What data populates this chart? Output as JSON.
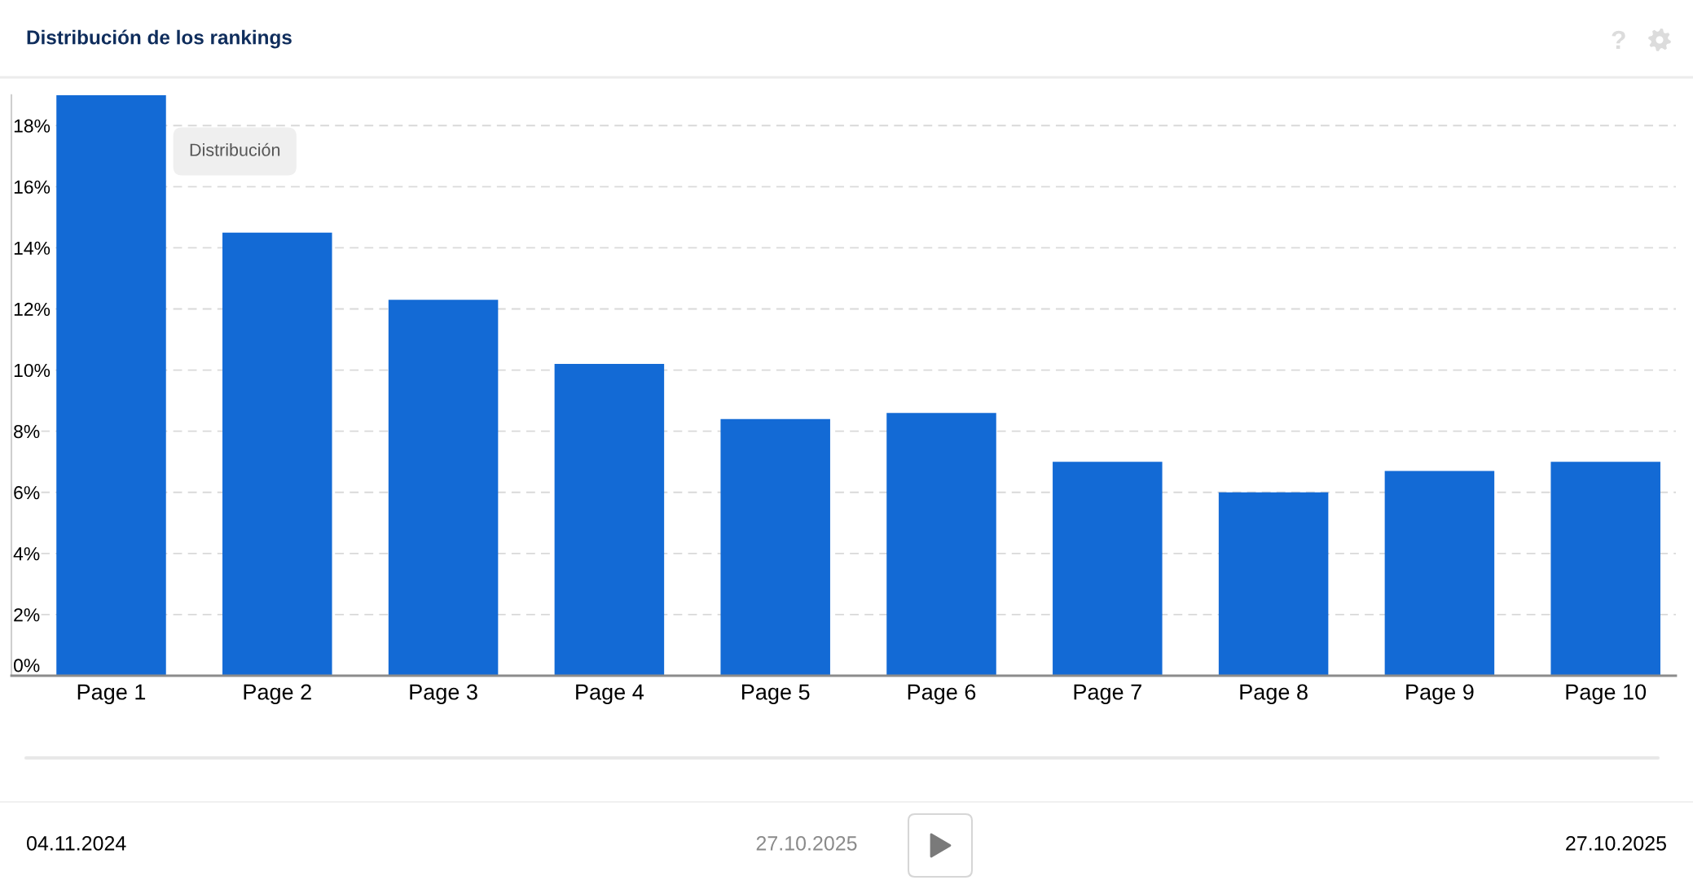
{
  "chart_data": {
    "type": "bar",
    "title": "Distribución de los rankings",
    "categories": [
      "Page 1",
      "Page 2",
      "Page 3",
      "Page 4",
      "Page 5",
      "Page 6",
      "Page 7",
      "Page 8",
      "Page 9",
      "Page 10"
    ],
    "values": [
      19.0,
      14.5,
      12.3,
      10.2,
      8.4,
      8.6,
      7.0,
      6.0,
      6.7,
      7.0
    ],
    "color": "#136ad5",
    "ylim": [
      0,
      19
    ],
    "yticks": [
      {
        "value": 0,
        "label": "0%"
      },
      {
        "value": 2,
        "label": "2%"
      },
      {
        "value": 4,
        "label": "4%"
      },
      {
        "value": 6,
        "label": "6%"
      },
      {
        "value": 8,
        "label": "8%"
      },
      {
        "value": 10,
        "label": "10%"
      },
      {
        "value": 12,
        "label": "12%"
      },
      {
        "value": 14,
        "label": "14%"
      },
      {
        "value": 16,
        "label": "16%"
      },
      {
        "value": 18,
        "label": "18%"
      }
    ],
    "grid": "y",
    "annotations": [
      "Distribución",
      "04.11.2024",
      "27.10.2025",
      "27.10.2025"
    ]
  }
}
